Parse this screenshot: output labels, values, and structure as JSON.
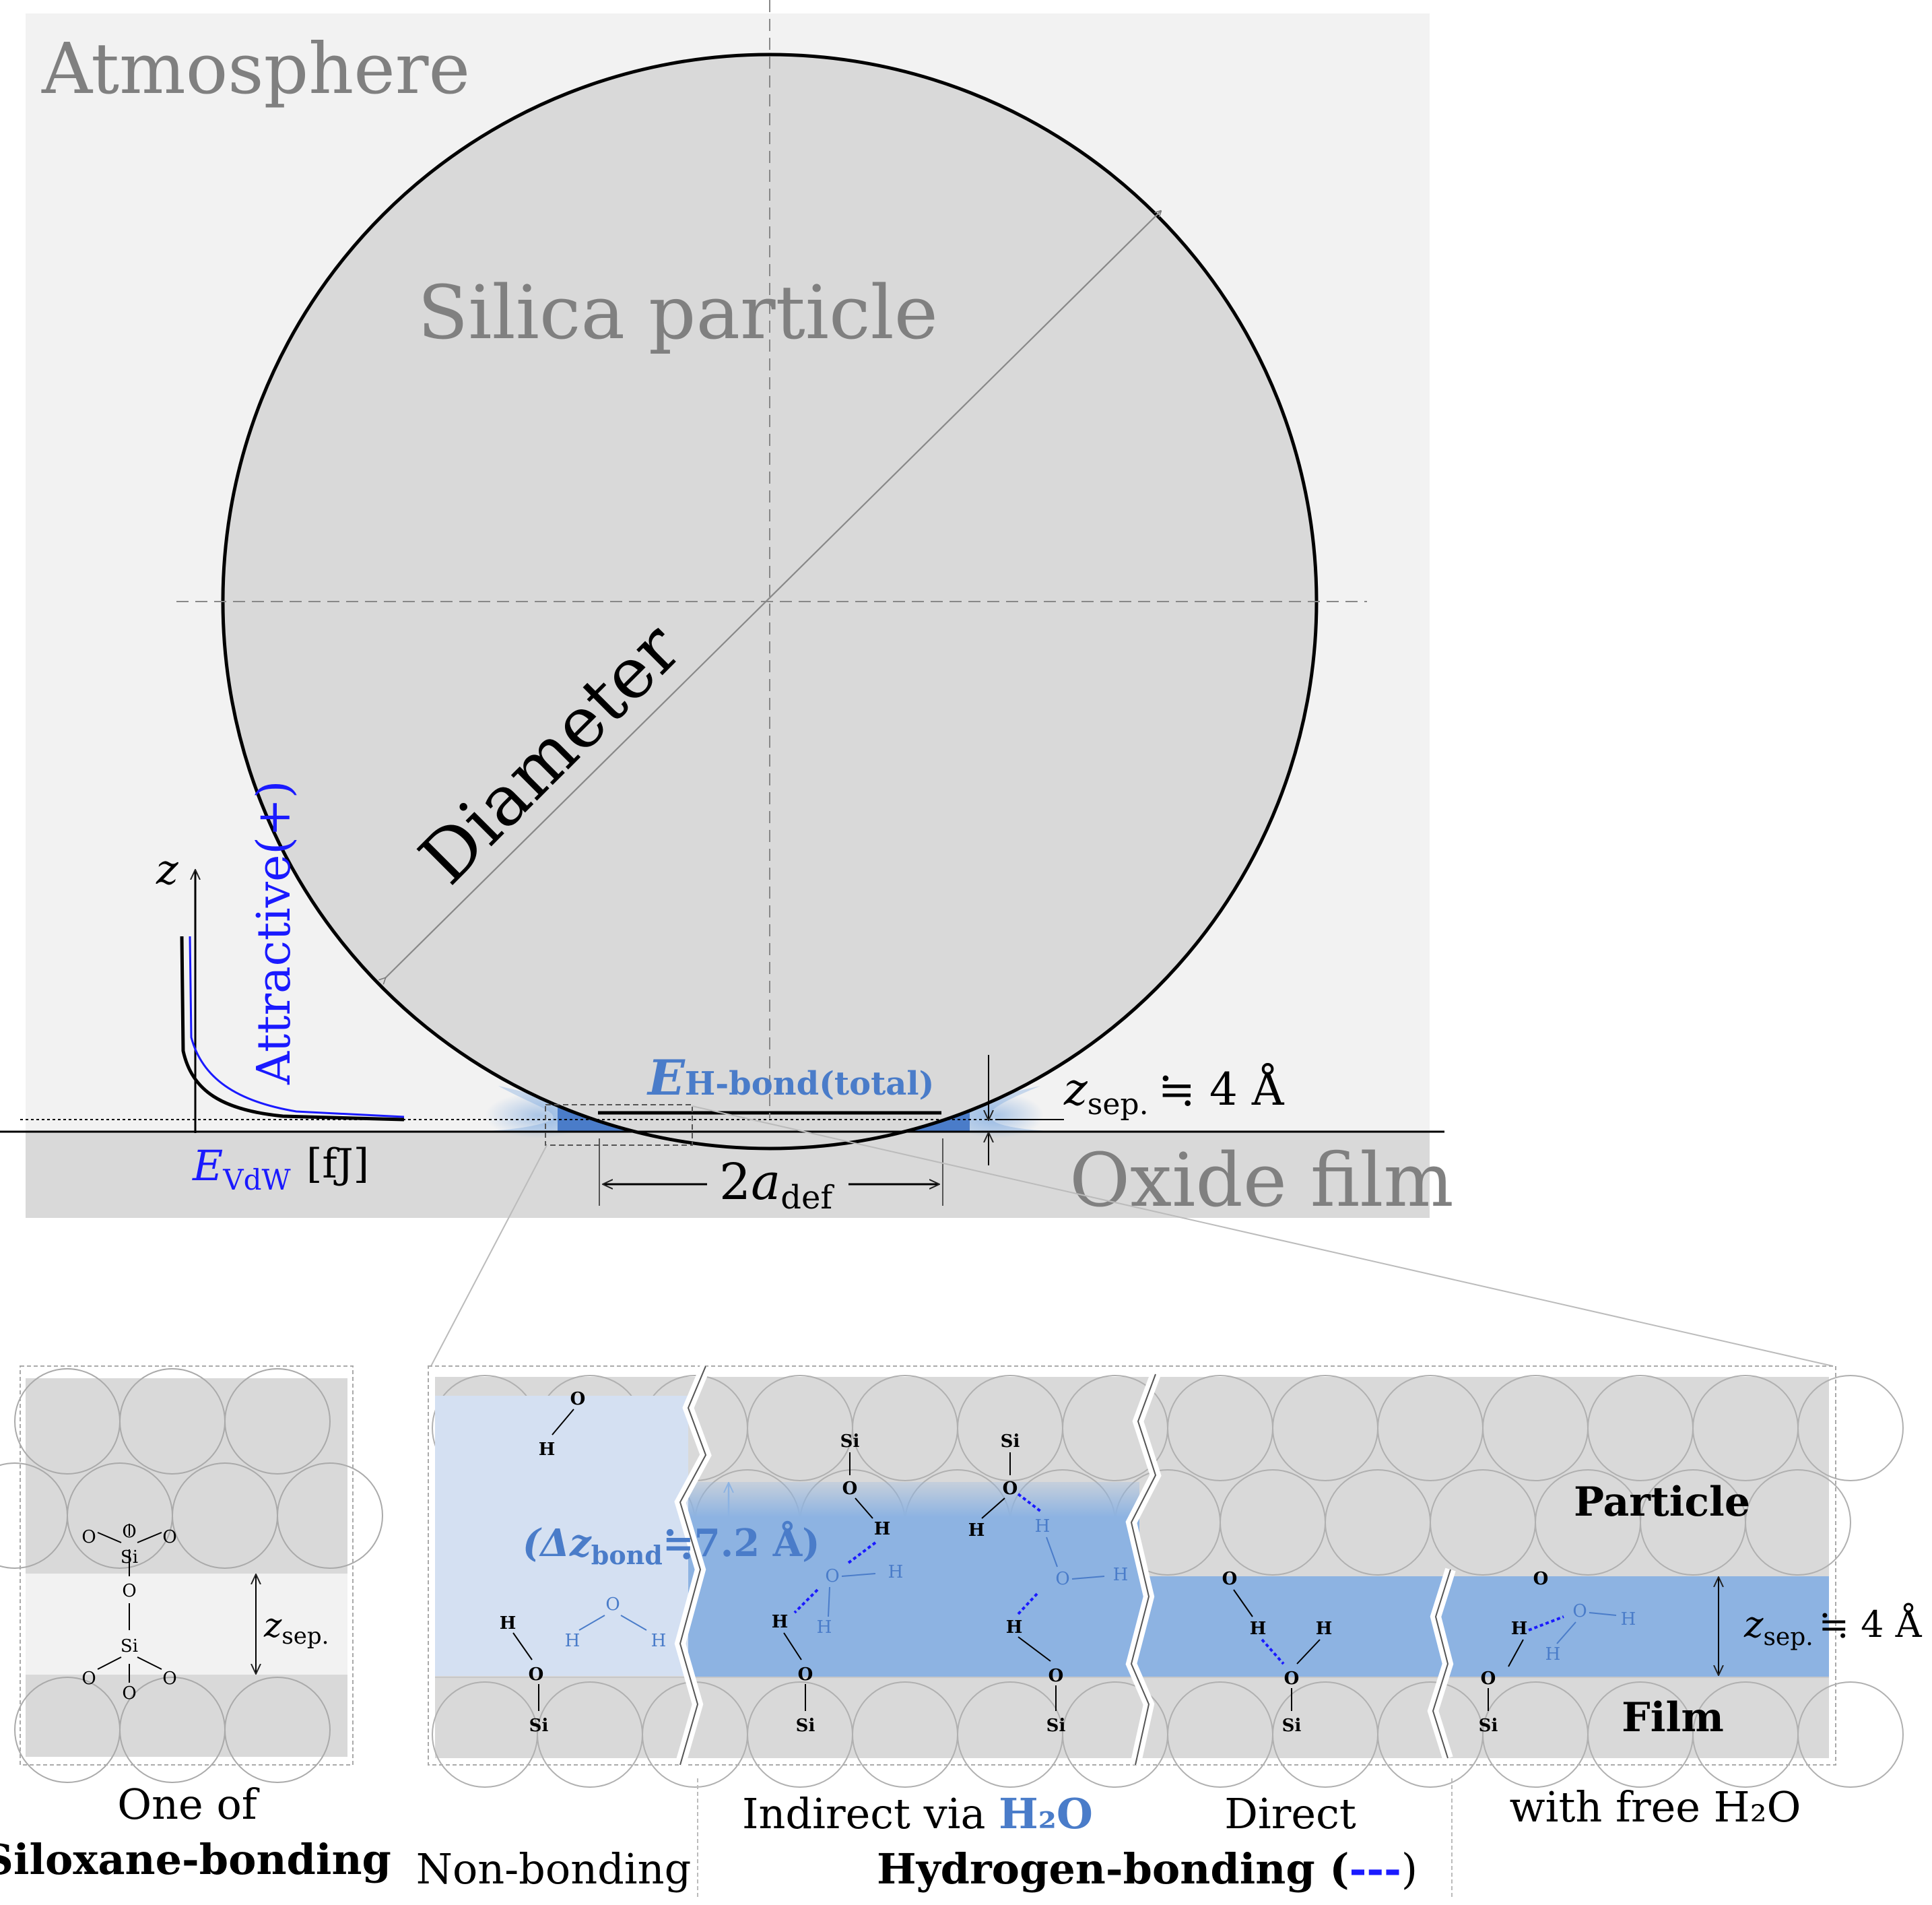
{
  "top": {
    "atmosphere_label": "Atmosphere",
    "particle_label": "Silica particle",
    "diameter_label": "Diameter",
    "attractive_label": "Attractive(+)",
    "z_axis_label": "z",
    "evdw_label": "E",
    "evdw_sub": "VdW",
    "evdw_unit": "[fJ]",
    "hbond_E": "E",
    "hbond_sub": "H-bond(total)",
    "zsep_z": "z",
    "zsep_sub": "sep.",
    "zsep_value": "≒ 4 Å",
    "oxide_label": "Oxide film",
    "contact_label_left": "2",
    "contact_label_a": "a",
    "contact_label_sub": "def"
  },
  "panels": {
    "siloxane": {
      "caption_line1": "One of",
      "caption_line2": "Siloxane-bonding",
      "zsep_z": "z",
      "zsep_sub": "sep.",
      "atoms": {
        "o": "O",
        "si": "Si"
      }
    },
    "hbond": {
      "delta_prefix": "(Δz",
      "delta_sub": "bond",
      "delta_value": "≒7.2 Å)",
      "particle_label": "Particle",
      "film_label": "Film",
      "zsep_z": "z",
      "zsep_sub": "sep.",
      "zsep_value": "≒ 4 Å",
      "atoms": {
        "o": "O",
        "h": "H",
        "si": "Si"
      },
      "captions": {
        "non_bonding": "Non-bonding",
        "indirect": "Indirect via ",
        "indirect_h2o": "H₂O",
        "direct": "Direct",
        "free_h2o": "with free H₂O",
        "hydrogen_bonding": "Hydrogen-bonding (",
        "hydrogen_dash": "---",
        "hydrogen_close": ")"
      }
    }
  },
  "colors": {
    "atmosphere_bg": "#f2f2f2",
    "particle_fill": "#d9d9d9",
    "blue_text": "#4a7cc9",
    "dark_blue": "#1a1aff",
    "water_band": "#8db3e2",
    "water_band_light": "#d4e0f2",
    "gray_text": "#808080"
  }
}
